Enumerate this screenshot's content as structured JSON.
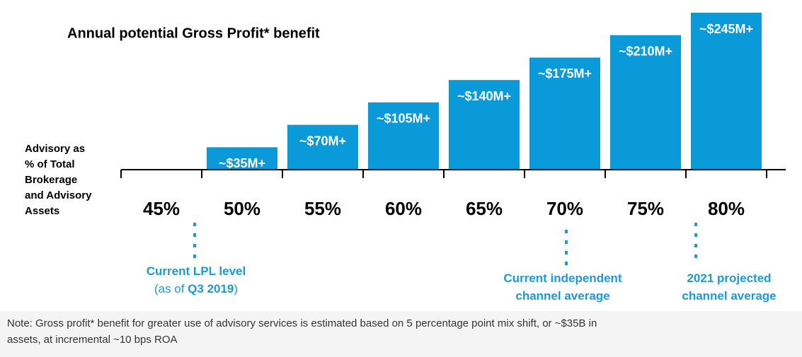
{
  "chart_data": {
    "type": "bar",
    "title": "Annual potential Gross Profit* benefit",
    "y_label": [
      "Advisory as",
      "% of Total",
      "Brokerage",
      "and Advisory",
      "Assets"
    ],
    "categories": [
      "45%",
      "50%",
      "55%",
      "60%",
      "65%",
      "70%",
      "75%",
      "80%"
    ],
    "values": [
      null,
      35,
      70,
      105,
      140,
      175,
      210,
      245
    ],
    "value_labels": [
      null,
      "~$35M+",
      "~$70M+",
      "~$105M+",
      "~$140M+",
      "~$175M+",
      "~$210M+",
      "~$245M+"
    ],
    "color": "#0a9ad9"
  },
  "annotations": [
    {
      "lines": [
        [
          {
            "text": "Current LPL level",
            "bold": true
          }
        ],
        [
          {
            "text": "(as of "
          },
          {
            "text": "Q3 2019",
            "bold": true
          },
          {
            "text": ")"
          }
        ]
      ]
    },
    {
      "lines": [
        [
          {
            "text": "Current independent",
            "bold": true
          }
        ],
        [
          {
            "text": "channel average",
            "bold": true
          }
        ]
      ]
    },
    {
      "lines": [
        [
          {
            "text": "2021 projected",
            "bold": true
          }
        ],
        [
          {
            "text": "channel average",
            "bold": true
          }
        ]
      ]
    }
  ],
  "note": [
    "Note: Gross profit* benefit for greater use of advisory services is estimated based on 5 percentage point mix shift, or ~$35B in",
    "assets, at incremental ~10 bps ROA"
  ]
}
